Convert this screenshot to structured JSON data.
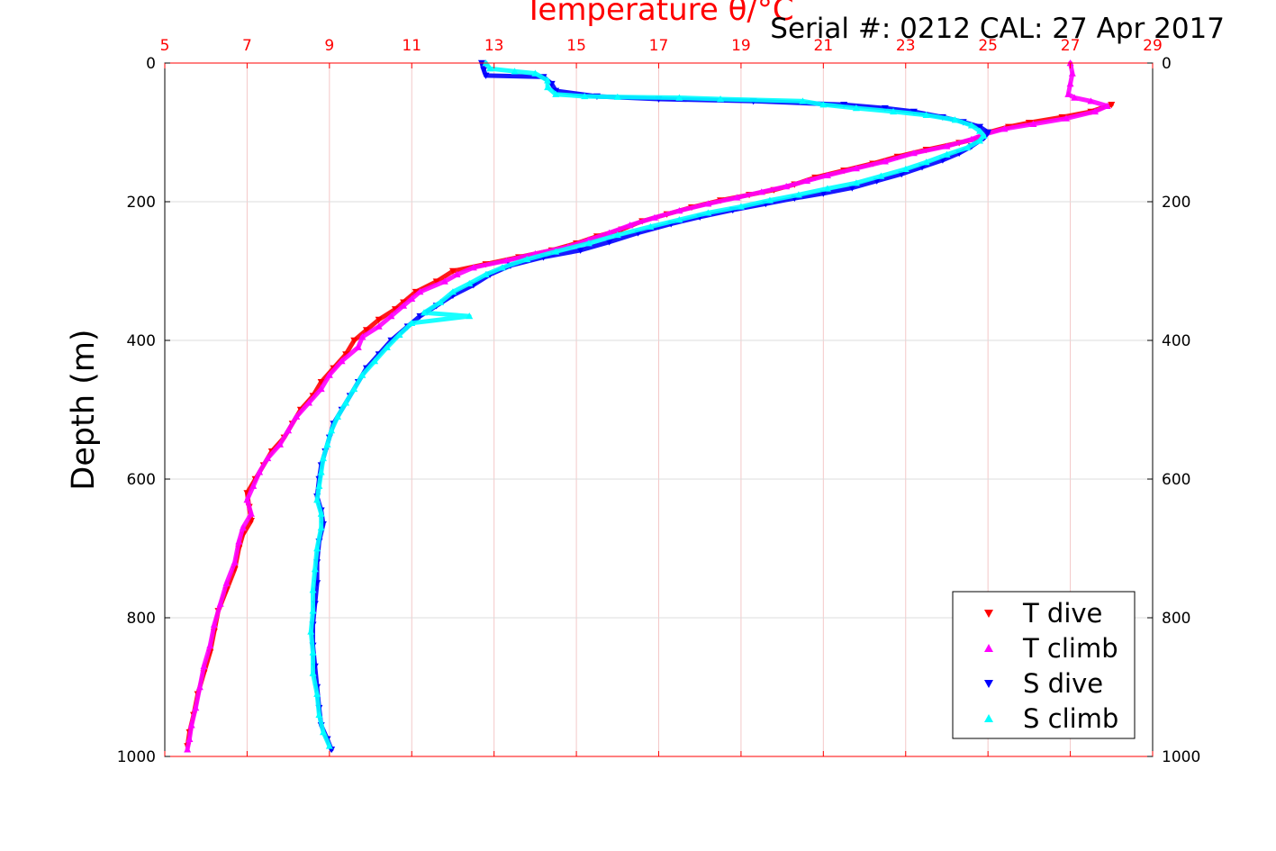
{
  "chart_data": {
    "type": "scatter",
    "title": "Temperature θ/°C",
    "annotation": "Serial #: 0212  CAL: 27 Apr 2017",
    "xlabel": "Temperature θ/°C",
    "ylabel": "Depth (m)",
    "xlim": [
      5,
      29
    ],
    "ylim": [
      1000,
      0
    ],
    "x_ticks": [
      "5",
      "7",
      "9",
      "11",
      "13",
      "15",
      "17",
      "19",
      "21",
      "23",
      "25",
      "27",
      "29"
    ],
    "y_ticks": [
      "0",
      "200",
      "400",
      "600",
      "800",
      "1000"
    ],
    "y_ticks_right": [
      "0",
      "200",
      "400",
      "600",
      "800",
      "1000"
    ],
    "grid": true,
    "legend_position": "bottom-right",
    "colors": {
      "axis_top": "#ff0000",
      "grid": "#dddddd",
      "grid_v": "#f4c8c8"
    },
    "series": [
      {
        "name": "T dive",
        "marker": "triangle-down",
        "color": "#ff0000",
        "points": [
          [
            28.0,
            60
          ],
          [
            27.5,
            70
          ],
          [
            26.8,
            78
          ],
          [
            26.0,
            86
          ],
          [
            25.5,
            92
          ],
          [
            25.0,
            100
          ],
          [
            24.8,
            108
          ],
          [
            24.3,
            115
          ],
          [
            23.5,
            125
          ],
          [
            22.8,
            135
          ],
          [
            22.2,
            145
          ],
          [
            21.5,
            155
          ],
          [
            20.8,
            165
          ],
          [
            20.3,
            175
          ],
          [
            19.8,
            183
          ],
          [
            19.2,
            190
          ],
          [
            18.5,
            198
          ],
          [
            17.8,
            208
          ],
          [
            17.2,
            218
          ],
          [
            16.6,
            228
          ],
          [
            16.1,
            240
          ],
          [
            15.5,
            250
          ],
          [
            15.0,
            260
          ],
          [
            14.4,
            270
          ],
          [
            13.6,
            280
          ],
          [
            12.8,
            290
          ],
          [
            12.0,
            300
          ],
          [
            11.6,
            315
          ],
          [
            11.1,
            330
          ],
          [
            10.8,
            345
          ],
          [
            10.6,
            355
          ],
          [
            10.2,
            370
          ],
          [
            9.9,
            385
          ],
          [
            9.6,
            400
          ],
          [
            9.4,
            420
          ],
          [
            9.1,
            440
          ],
          [
            8.8,
            460
          ],
          [
            8.6,
            480
          ],
          [
            8.3,
            500
          ],
          [
            8.1,
            520
          ],
          [
            7.9,
            540
          ],
          [
            7.6,
            560
          ],
          [
            7.4,
            580
          ],
          [
            7.2,
            600
          ],
          [
            7.0,
            620
          ],
          [
            7.05,
            640
          ],
          [
            7.1,
            660
          ],
          [
            6.9,
            680
          ],
          [
            6.8,
            700
          ],
          [
            6.7,
            730
          ],
          [
            6.5,
            760
          ],
          [
            6.3,
            790
          ],
          [
            6.2,
            820
          ],
          [
            6.1,
            850
          ],
          [
            5.95,
            880
          ],
          [
            5.8,
            910
          ],
          [
            5.7,
            940
          ],
          [
            5.6,
            965
          ],
          [
            5.55,
            985
          ]
        ]
      },
      {
        "name": "T climb",
        "marker": "triangle-up",
        "color": "#ff00ff",
        "points": [
          [
            27.0,
            0
          ],
          [
            27.05,
            15
          ],
          [
            27.0,
            30
          ],
          [
            26.95,
            45
          ],
          [
            27.1,
            50
          ],
          [
            27.5,
            55
          ],
          [
            27.9,
            62
          ],
          [
            27.6,
            70
          ],
          [
            26.9,
            80
          ],
          [
            26.1,
            88
          ],
          [
            25.4,
            95
          ],
          [
            24.9,
            103
          ],
          [
            24.6,
            110
          ],
          [
            24.0,
            120
          ],
          [
            23.2,
            130
          ],
          [
            22.5,
            142
          ],
          [
            21.8,
            152
          ],
          [
            21.1,
            162
          ],
          [
            20.6,
            170
          ],
          [
            20.1,
            178
          ],
          [
            19.5,
            186
          ],
          [
            18.9,
            194
          ],
          [
            18.2,
            203
          ],
          [
            17.5,
            213
          ],
          [
            16.9,
            223
          ],
          [
            16.3,
            234
          ],
          [
            15.8,
            245
          ],
          [
            15.3,
            255
          ],
          [
            14.8,
            265
          ],
          [
            14.0,
            275
          ],
          [
            13.3,
            285
          ],
          [
            12.5,
            295
          ],
          [
            12.1,
            305
          ],
          [
            11.8,
            315
          ],
          [
            11.2,
            330
          ],
          [
            11.0,
            340
          ],
          [
            10.8,
            350
          ],
          [
            10.5,
            365
          ],
          [
            10.2,
            380
          ],
          [
            9.8,
            395
          ],
          [
            9.7,
            410
          ],
          [
            9.3,
            430
          ],
          [
            9.0,
            450
          ],
          [
            8.8,
            470
          ],
          [
            8.5,
            490
          ],
          [
            8.2,
            510
          ],
          [
            8.0,
            530
          ],
          [
            7.8,
            550
          ],
          [
            7.5,
            570
          ],
          [
            7.3,
            590
          ],
          [
            7.15,
            610
          ],
          [
            7.0,
            630
          ],
          [
            7.1,
            650
          ],
          [
            6.9,
            670
          ],
          [
            6.8,
            690
          ],
          [
            6.7,
            720
          ],
          [
            6.5,
            750
          ],
          [
            6.35,
            780
          ],
          [
            6.2,
            810
          ],
          [
            6.1,
            840
          ],
          [
            5.95,
            870
          ],
          [
            5.85,
            900
          ],
          [
            5.75,
            930
          ],
          [
            5.65,
            955
          ],
          [
            5.6,
            975
          ],
          [
            5.55,
            990
          ]
        ]
      },
      {
        "name": "S dive",
        "marker": "triangle-down",
        "color": "#0000ff",
        "points": [
          [
            12.7,
            0
          ],
          [
            12.75,
            10
          ],
          [
            12.8,
            18
          ],
          [
            14.2,
            20
          ],
          [
            14.4,
            30
          ],
          [
            14.5,
            40
          ],
          [
            15.5,
            48
          ],
          [
            17.0,
            52
          ],
          [
            19.3,
            55
          ],
          [
            21.5,
            60
          ],
          [
            22.5,
            65
          ],
          [
            23.2,
            70
          ],
          [
            23.9,
            78
          ],
          [
            24.4,
            85
          ],
          [
            24.8,
            92
          ],
          [
            25.0,
            100
          ],
          [
            24.9,
            108
          ],
          [
            24.6,
            120
          ],
          [
            24.3,
            130
          ],
          [
            23.9,
            140
          ],
          [
            23.4,
            150
          ],
          [
            22.9,
            160
          ],
          [
            22.3,
            170
          ],
          [
            21.7,
            180
          ],
          [
            21.0,
            188
          ],
          [
            20.3,
            195
          ],
          [
            19.6,
            203
          ],
          [
            18.8,
            212
          ],
          [
            18.0,
            222
          ],
          [
            17.3,
            232
          ],
          [
            16.5,
            245
          ],
          [
            15.8,
            258
          ],
          [
            15.1,
            270
          ],
          [
            14.2,
            280
          ],
          [
            13.4,
            292
          ],
          [
            12.9,
            305
          ],
          [
            12.5,
            320
          ],
          [
            12.0,
            335
          ],
          [
            11.6,
            350
          ],
          [
            11.2,
            365
          ],
          [
            10.9,
            380
          ],
          [
            10.5,
            400
          ],
          [
            10.2,
            420
          ],
          [
            9.9,
            440
          ],
          [
            9.7,
            460
          ],
          [
            9.5,
            480
          ],
          [
            9.3,
            500
          ],
          [
            9.1,
            520
          ],
          [
            9.0,
            540
          ],
          [
            8.9,
            560
          ],
          [
            8.8,
            580
          ],
          [
            8.75,
            600
          ],
          [
            8.7,
            625
          ],
          [
            8.8,
            645
          ],
          [
            8.85,
            665
          ],
          [
            8.75,
            690
          ],
          [
            8.7,
            720
          ],
          [
            8.7,
            750
          ],
          [
            8.65,
            780
          ],
          [
            8.6,
            810
          ],
          [
            8.6,
            840
          ],
          [
            8.65,
            870
          ],
          [
            8.7,
            900
          ],
          [
            8.75,
            930
          ],
          [
            8.8,
            955
          ],
          [
            8.95,
            975
          ],
          [
            9.05,
            990
          ]
        ]
      },
      {
        "name": "S climb",
        "marker": "triangle-up",
        "color": "#00ffff",
        "points": [
          [
            12.8,
            0
          ],
          [
            12.9,
            8
          ],
          [
            13.5,
            12
          ],
          [
            14.0,
            15
          ],
          [
            14.3,
            25
          ],
          [
            14.3,
            35
          ],
          [
            14.5,
            45
          ],
          [
            15.2,
            48
          ],
          [
            16.0,
            49
          ],
          [
            17.5,
            50
          ],
          [
            18.5,
            52
          ],
          [
            20.5,
            55
          ],
          [
            21.0,
            60
          ],
          [
            21.8,
            65
          ],
          [
            22.7,
            70
          ],
          [
            23.5,
            75
          ],
          [
            24.2,
            82
          ],
          [
            24.6,
            90
          ],
          [
            24.8,
            98
          ],
          [
            24.9,
            105
          ],
          [
            24.8,
            112
          ],
          [
            24.5,
            122
          ],
          [
            24.0,
            132
          ],
          [
            23.5,
            143
          ],
          [
            23.0,
            153
          ],
          [
            22.4,
            163
          ],
          [
            21.8,
            173
          ],
          [
            21.1,
            181
          ],
          [
            20.4,
            190
          ],
          [
            19.7,
            198
          ],
          [
            19.0,
            207
          ],
          [
            18.2,
            216
          ],
          [
            17.5,
            226
          ],
          [
            16.8,
            236
          ],
          [
            16.0,
            248
          ],
          [
            15.3,
            260
          ],
          [
            14.5,
            272
          ],
          [
            13.8,
            283
          ],
          [
            13.2,
            295
          ],
          [
            12.8,
            305
          ],
          [
            12.4,
            318
          ],
          [
            12.0,
            330
          ],
          [
            11.7,
            345
          ],
          [
            11.3,
            360
          ],
          [
            12.4,
            365
          ],
          [
            11.0,
            375
          ],
          [
            10.7,
            392
          ],
          [
            10.4,
            410
          ],
          [
            10.1,
            430
          ],
          [
            9.8,
            450
          ],
          [
            9.6,
            470
          ],
          [
            9.4,
            490
          ],
          [
            9.2,
            510
          ],
          [
            9.05,
            530
          ],
          [
            8.95,
            550
          ],
          [
            8.85,
            570
          ],
          [
            8.8,
            590
          ],
          [
            8.75,
            610
          ],
          [
            8.7,
            630
          ],
          [
            8.8,
            650
          ],
          [
            8.8,
            670
          ],
          [
            8.7,
            700
          ],
          [
            8.65,
            730
          ],
          [
            8.6,
            760
          ],
          [
            8.6,
            790
          ],
          [
            8.55,
            820
          ],
          [
            8.6,
            850
          ],
          [
            8.6,
            880
          ],
          [
            8.7,
            910
          ],
          [
            8.75,
            940
          ],
          [
            8.85,
            965
          ],
          [
            9.0,
            985
          ]
        ]
      }
    ]
  }
}
